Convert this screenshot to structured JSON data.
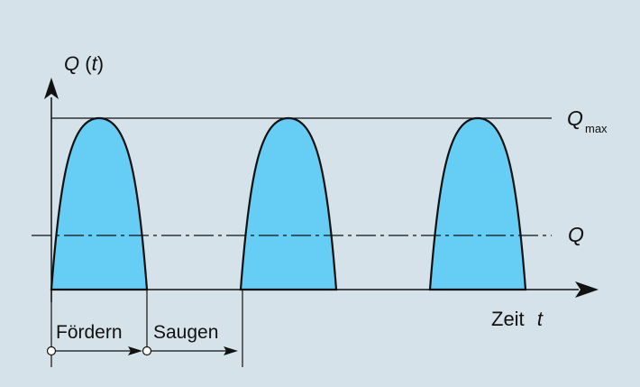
{
  "diagram": {
    "y_axis_label": {
      "symbol": "Q",
      "var": "t"
    },
    "x_axis_label": {
      "word": "Zeit",
      "var": "t"
    },
    "max_label": {
      "symbol": "Q",
      "subscript": "max"
    },
    "mean_label": "Q",
    "phases": [
      {
        "label": "Fördern"
      },
      {
        "label": "Saugen"
      }
    ],
    "pulse_count": 3,
    "colors": {
      "background": "#d6e2ea",
      "pulse_fill": "#66cef5",
      "stroke": "#111111"
    }
  }
}
